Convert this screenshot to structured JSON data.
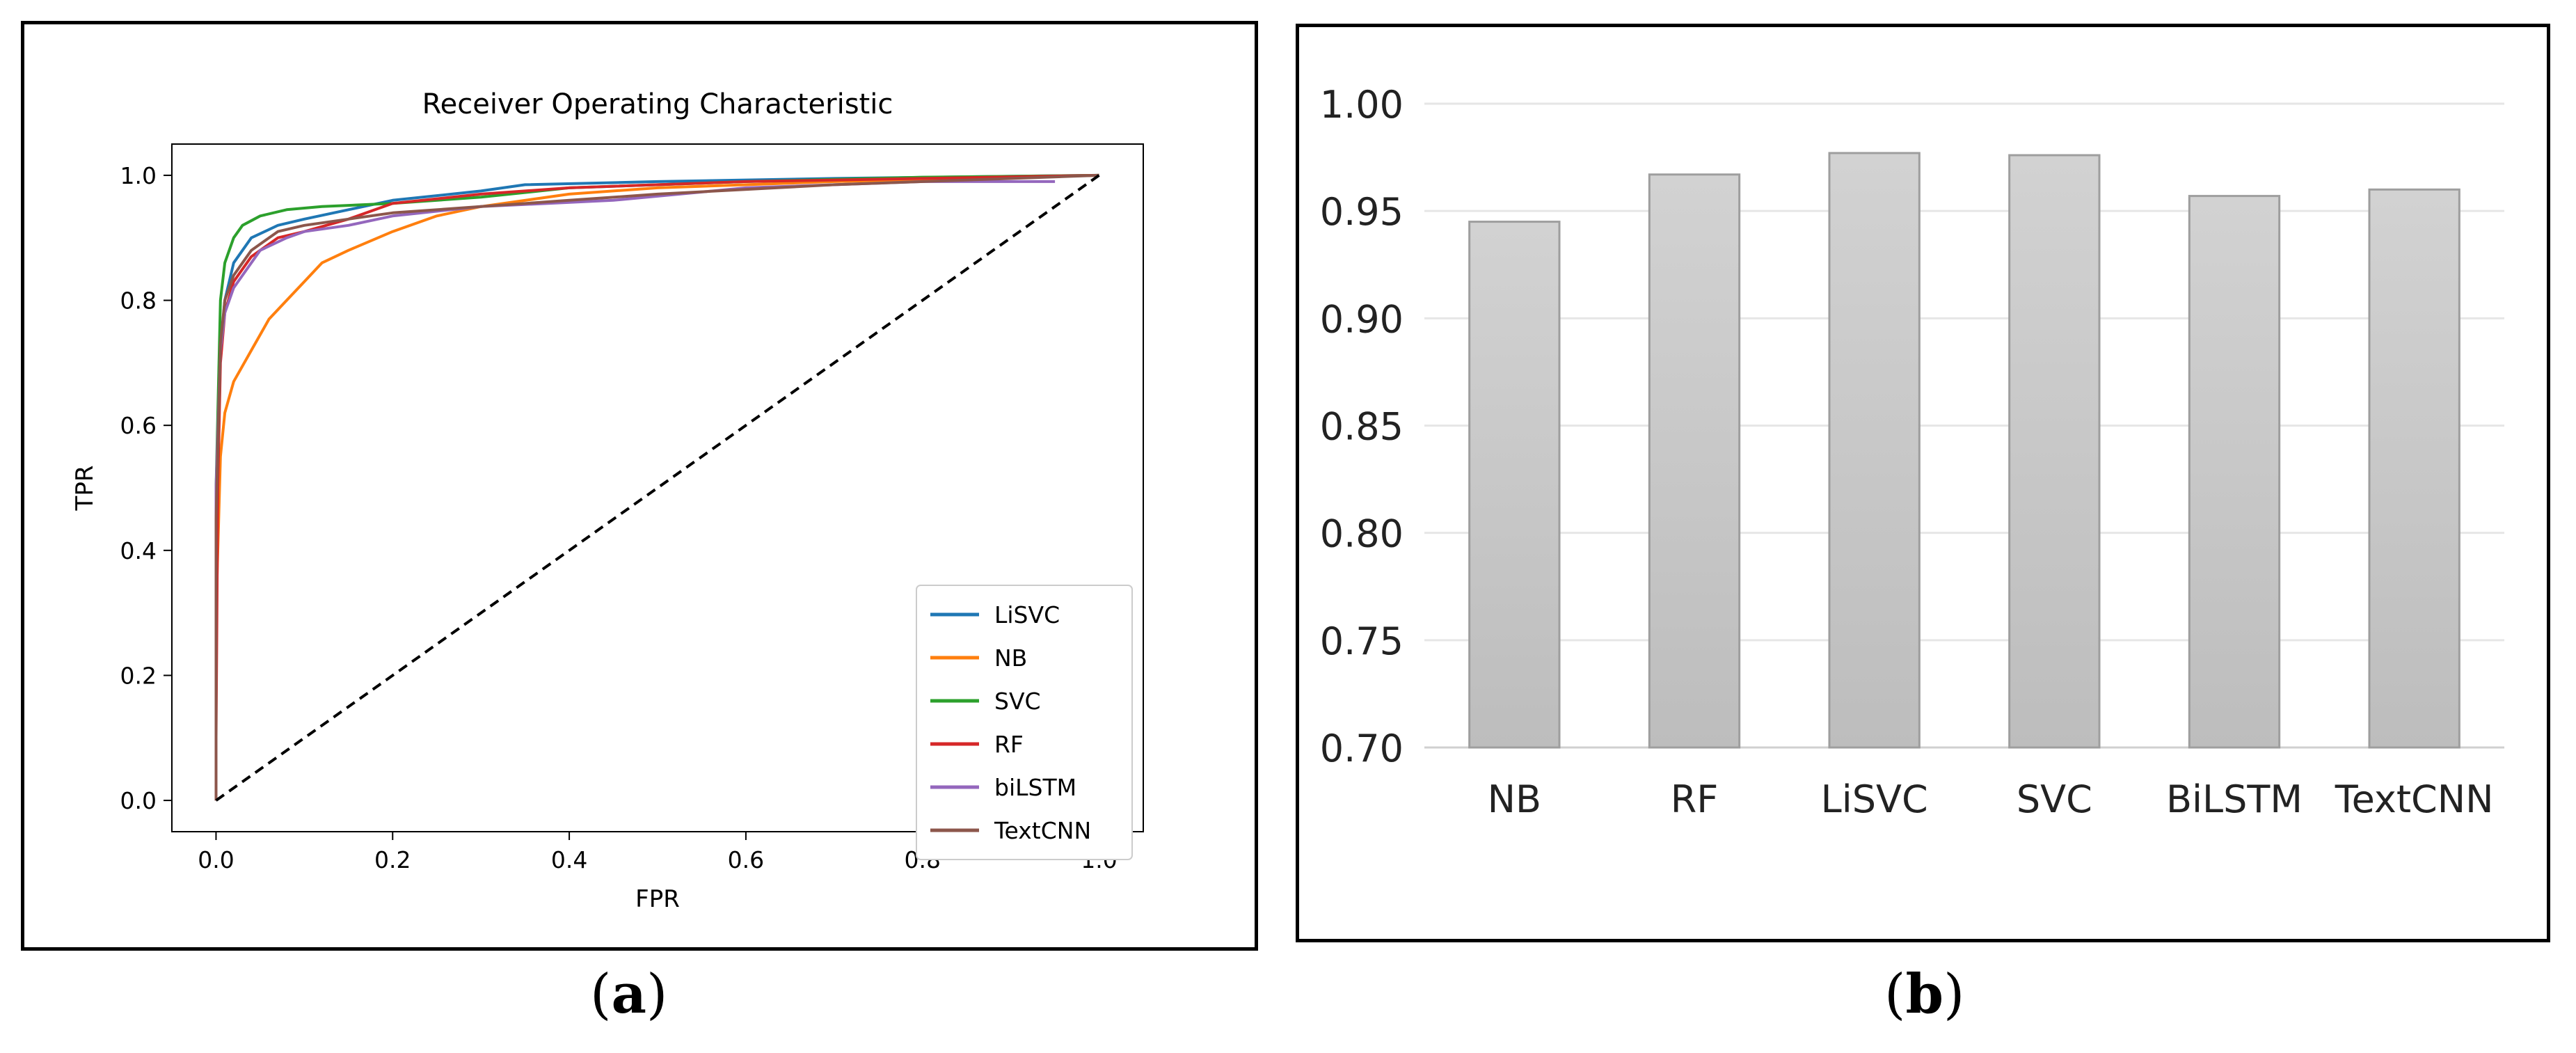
{
  "captions": {
    "a_open": "(",
    "a_letter": "a",
    "a_close": ")",
    "b_open": "(",
    "b_letter": "b",
    "b_close": ")"
  },
  "colors": {
    "LiSVC": "#1f77b4",
    "NB": "#ff7f0e",
    "SVC": "#2ca02c",
    "RF": "#d62728",
    "biLSTM": "#9467bd",
    "TextCNN": "#8c564b",
    "bar_fill": "#c8c8c8",
    "bar_stroke": "#9e9e9e"
  },
  "chart_data": [
    {
      "type": "line",
      "title": "Receiver Operating Characteristic",
      "xlabel": "FPR",
      "ylabel": "TPR",
      "xlim": [
        -0.05,
        1.05
      ],
      "ylim": [
        -0.05,
        1.05
      ],
      "xticks": [
        "0.0",
        "0.2",
        "0.4",
        "0.6",
        "0.8",
        "1.0"
      ],
      "yticks": [
        "0.0",
        "0.2",
        "0.4",
        "0.6",
        "0.8",
        "1.0"
      ],
      "grid": false,
      "legend_position": "lower-right",
      "series": [
        {
          "name": "LiSVC",
          "points": [
            [
              0,
              0
            ],
            [
              0,
              0.4
            ],
            [
              0.005,
              0.72
            ],
            [
              0.01,
              0.8
            ],
            [
              0.02,
              0.86
            ],
            [
              0.04,
              0.9
            ],
            [
              0.07,
              0.92
            ],
            [
              0.1,
              0.93
            ],
            [
              0.15,
              0.945
            ],
            [
              0.2,
              0.96
            ],
            [
              0.3,
              0.975
            ],
            [
              0.35,
              0.985
            ],
            [
              0.5,
              0.99
            ],
            [
              0.7,
              0.995
            ],
            [
              1,
              1
            ]
          ]
        },
        {
          "name": "NB",
          "points": [
            [
              0,
              0
            ],
            [
              0,
              0.3
            ],
            [
              0.005,
              0.55
            ],
            [
              0.01,
              0.62
            ],
            [
              0.02,
              0.67
            ],
            [
              0.04,
              0.72
            ],
            [
              0.06,
              0.77
            ],
            [
              0.08,
              0.8
            ],
            [
              0.1,
              0.83
            ],
            [
              0.12,
              0.86
            ],
            [
              0.15,
              0.88
            ],
            [
              0.2,
              0.91
            ],
            [
              0.25,
              0.935
            ],
            [
              0.3,
              0.95
            ],
            [
              0.4,
              0.97
            ],
            [
              0.5,
              0.98
            ],
            [
              0.7,
              0.99
            ],
            [
              1,
              1
            ]
          ]
        },
        {
          "name": "SVC",
          "points": [
            [
              0,
              0
            ],
            [
              0,
              0.5
            ],
            [
              0.005,
              0.8
            ],
            [
              0.01,
              0.86
            ],
            [
              0.02,
              0.9
            ],
            [
              0.03,
              0.92
            ],
            [
              0.05,
              0.935
            ],
            [
              0.08,
              0.945
            ],
            [
              0.12,
              0.95
            ],
            [
              0.2,
              0.955
            ],
            [
              0.3,
              0.965
            ],
            [
              0.4,
              0.98
            ],
            [
              0.6,
              0.99
            ],
            [
              0.8,
              0.997
            ],
            [
              1,
              1
            ]
          ]
        },
        {
          "name": "RF",
          "points": [
            [
              0,
              0
            ],
            [
              0,
              0.1
            ],
            [
              0.002,
              0.5
            ],
            [
              0.005,
              0.7
            ],
            [
              0.01,
              0.78
            ],
            [
              0.02,
              0.83
            ],
            [
              0.04,
              0.87
            ],
            [
              0.07,
              0.9
            ],
            [
              0.1,
              0.91
            ],
            [
              0.15,
              0.93
            ],
            [
              0.2,
              0.955
            ],
            [
              0.3,
              0.97
            ],
            [
              0.4,
              0.98
            ],
            [
              0.6,
              0.99
            ],
            [
              1,
              1
            ]
          ]
        },
        {
          "name": "biLSTM",
          "points": [
            [
              0,
              0
            ],
            [
              0,
              0.5
            ],
            [
              0.005,
              0.72
            ],
            [
              0.01,
              0.78
            ],
            [
              0.02,
              0.82
            ],
            [
              0.03,
              0.84
            ],
            [
              0.05,
              0.88
            ],
            [
              0.08,
              0.9
            ],
            [
              0.1,
              0.91
            ],
            [
              0.15,
              0.92
            ],
            [
              0.2,
              0.935
            ],
            [
              0.3,
              0.95
            ],
            [
              0.45,
              0.96
            ],
            [
              0.6,
              0.98
            ],
            [
              0.8,
              0.99
            ],
            [
              0.95,
              0.99
            ]
          ]
        },
        {
          "name": "TextCNN",
          "points": [
            [
              0,
              0
            ],
            [
              0,
              0.45
            ],
            [
              0.005,
              0.73
            ],
            [
              0.01,
              0.8
            ],
            [
              0.02,
              0.84
            ],
            [
              0.04,
              0.88
            ],
            [
              0.07,
              0.91
            ],
            [
              0.1,
              0.92
            ],
            [
              0.15,
              0.93
            ],
            [
              0.2,
              0.94
            ],
            [
              0.3,
              0.95
            ],
            [
              0.4,
              0.96
            ],
            [
              0.5,
              0.97
            ],
            [
              0.7,
              0.985
            ],
            [
              1,
              1
            ]
          ]
        },
        {
          "name": "",
          "style": "dashed",
          "points": [
            [
              0,
              0
            ],
            [
              1,
              1
            ]
          ]
        }
      ]
    },
    {
      "type": "bar",
      "categories": [
        "NB",
        "RF",
        "LiSVC",
        "SVC",
        "BiLSTM",
        "TextCNN"
      ],
      "values": [
        0.945,
        0.967,
        0.977,
        0.976,
        0.957,
        0.96
      ],
      "ylim": [
        0.7,
        1.0
      ],
      "yticks": [
        "0.70",
        "0.75",
        "0.80",
        "0.85",
        "0.90",
        "0.95",
        "1.00"
      ],
      "grid": true
    }
  ]
}
